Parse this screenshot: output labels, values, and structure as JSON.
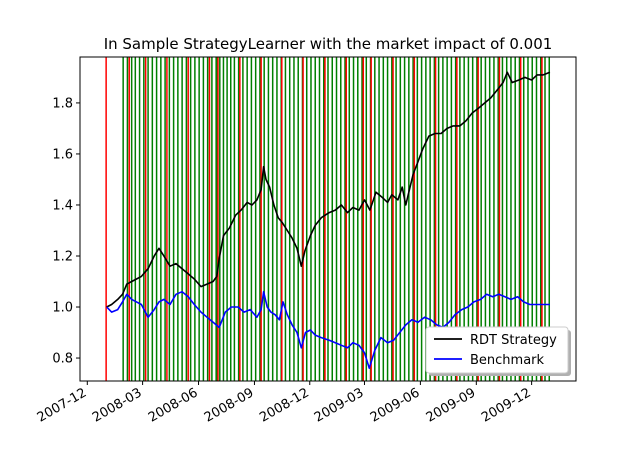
{
  "chart_data": {
    "type": "line",
    "title": "In Sample StrategyLearner with the market impact of 0.001",
    "xlabel": "",
    "ylabel": "",
    "x_ticks": [
      "2007-12",
      "2008-03",
      "2008-06",
      "2008-09",
      "2008-12",
      "2009-03",
      "2009-06",
      "2009-09",
      "2009-12"
    ],
    "y_ticks": [
      "0.8",
      "1.0",
      "1.2",
      "1.4",
      "1.6",
      "1.8"
    ],
    "xlim": [
      "2007-11-19",
      "2010-02-12"
    ],
    "ylim": [
      0.71,
      1.98
    ],
    "grid": false,
    "legend_position": "lower-right",
    "series": [
      {
        "name": "RDT Strategy",
        "color": "#000000",
        "points": [
          [
            "2008-01-02",
            1.0
          ],
          [
            "2008-01-10",
            1.01
          ],
          [
            "2008-01-20",
            1.03
          ],
          [
            "2008-01-28",
            1.05
          ],
          [
            "2008-02-04",
            1.09
          ],
          [
            "2008-02-12",
            1.1
          ],
          [
            "2008-02-20",
            1.11
          ],
          [
            "2008-02-28",
            1.12
          ],
          [
            "2008-03-10",
            1.15
          ],
          [
            "2008-03-20",
            1.2
          ],
          [
            "2008-03-28",
            1.23
          ],
          [
            "2008-04-05",
            1.2
          ],
          [
            "2008-04-15",
            1.16
          ],
          [
            "2008-04-25",
            1.17
          ],
          [
            "2008-05-05",
            1.15
          ],
          [
            "2008-05-15",
            1.13
          ],
          [
            "2008-05-25",
            1.11
          ],
          [
            "2008-06-05",
            1.08
          ],
          [
            "2008-06-15",
            1.09
          ],
          [
            "2008-06-25",
            1.1
          ],
          [
            "2008-07-01",
            1.12
          ],
          [
            "2008-07-05",
            1.19
          ],
          [
            "2008-07-12",
            1.28
          ],
          [
            "2008-07-22",
            1.31
          ],
          [
            "2008-08-01",
            1.36
          ],
          [
            "2008-08-10",
            1.38
          ],
          [
            "2008-08-20",
            1.41
          ],
          [
            "2008-08-28",
            1.4
          ],
          [
            "2008-09-05",
            1.42
          ],
          [
            "2008-09-12",
            1.46
          ],
          [
            "2008-09-16",
            1.55
          ],
          [
            "2008-09-20",
            1.5
          ],
          [
            "2008-09-26",
            1.47
          ],
          [
            "2008-10-03",
            1.4
          ],
          [
            "2008-10-10",
            1.35
          ],
          [
            "2008-10-17",
            1.33
          ],
          [
            "2008-10-25",
            1.3
          ],
          [
            "2008-11-02",
            1.27
          ],
          [
            "2008-11-10",
            1.23
          ],
          [
            "2008-11-17",
            1.16
          ],
          [
            "2008-11-23",
            1.22
          ],
          [
            "2008-12-02",
            1.28
          ],
          [
            "2008-12-10",
            1.32
          ],
          [
            "2008-12-20",
            1.35
          ],
          [
            "2009-01-02",
            1.37
          ],
          [
            "2009-01-12",
            1.38
          ],
          [
            "2009-01-22",
            1.4
          ],
          [
            "2009-02-01",
            1.37
          ],
          [
            "2009-02-10",
            1.39
          ],
          [
            "2009-02-20",
            1.38
          ],
          [
            "2009-03-01",
            1.42
          ],
          [
            "2009-03-10",
            1.38
          ],
          [
            "2009-03-20",
            1.45
          ],
          [
            "2009-03-30",
            1.43
          ],
          [
            "2009-04-08",
            1.41
          ],
          [
            "2009-04-15",
            1.44
          ],
          [
            "2009-04-25",
            1.42
          ],
          [
            "2009-05-02",
            1.47
          ],
          [
            "2009-05-08",
            1.4
          ],
          [
            "2009-05-12",
            1.44
          ],
          [
            "2009-05-20",
            1.52
          ],
          [
            "2009-05-28",
            1.57
          ],
          [
            "2009-06-05",
            1.62
          ],
          [
            "2009-06-15",
            1.67
          ],
          [
            "2009-06-25",
            1.68
          ],
          [
            "2009-07-05",
            1.68
          ],
          [
            "2009-07-15",
            1.7
          ],
          [
            "2009-07-25",
            1.71
          ],
          [
            "2009-08-05",
            1.71
          ],
          [
            "2009-08-15",
            1.73
          ],
          [
            "2009-08-25",
            1.76
          ],
          [
            "2009-09-05",
            1.78
          ],
          [
            "2009-09-15",
            1.8
          ],
          [
            "2009-09-25",
            1.82
          ],
          [
            "2009-10-05",
            1.85
          ],
          [
            "2009-10-15",
            1.88
          ],
          [
            "2009-10-22",
            1.92
          ],
          [
            "2009-10-30",
            1.88
          ],
          [
            "2009-11-10",
            1.89
          ],
          [
            "2009-11-20",
            1.9
          ],
          [
            "2009-12-01",
            1.89
          ],
          [
            "2009-12-10",
            1.91
          ],
          [
            "2009-12-20",
            1.91
          ],
          [
            "2009-12-31",
            1.92
          ]
        ]
      },
      {
        "name": "Benchmark",
        "color": "#0000ff",
        "points": [
          [
            "2008-01-02",
            1.0
          ],
          [
            "2008-01-10",
            0.98
          ],
          [
            "2008-01-20",
            0.99
          ],
          [
            "2008-01-28",
            1.02
          ],
          [
            "2008-02-04",
            1.05
          ],
          [
            "2008-02-12",
            1.03
          ],
          [
            "2008-02-20",
            1.02
          ],
          [
            "2008-02-28",
            1.01
          ],
          [
            "2008-03-10",
            0.96
          ],
          [
            "2008-03-20",
            0.99
          ],
          [
            "2008-03-28",
            1.02
          ],
          [
            "2008-04-05",
            1.03
          ],
          [
            "2008-04-15",
            1.01
          ],
          [
            "2008-04-25",
            1.05
          ],
          [
            "2008-05-05",
            1.06
          ],
          [
            "2008-05-15",
            1.04
          ],
          [
            "2008-05-25",
            1.01
          ],
          [
            "2008-06-05",
            0.98
          ],
          [
            "2008-06-15",
            0.96
          ],
          [
            "2008-06-25",
            0.94
          ],
          [
            "2008-07-05",
            0.92
          ],
          [
            "2008-07-15",
            0.98
          ],
          [
            "2008-07-25",
            1.0
          ],
          [
            "2008-08-05",
            1.0
          ],
          [
            "2008-08-15",
            0.98
          ],
          [
            "2008-08-25",
            0.99
          ],
          [
            "2008-09-05",
            0.96
          ],
          [
            "2008-09-12",
            0.99
          ],
          [
            "2008-09-16",
            1.06
          ],
          [
            "2008-09-22",
            1.0
          ],
          [
            "2008-09-28",
            0.98
          ],
          [
            "2008-10-05",
            0.97
          ],
          [
            "2008-10-12",
            0.95
          ],
          [
            "2008-10-18",
            1.02
          ],
          [
            "2008-10-25",
            0.97
          ],
          [
            "2008-11-02",
            0.93
          ],
          [
            "2008-11-10",
            0.9
          ],
          [
            "2008-11-17",
            0.84
          ],
          [
            "2008-11-24",
            0.9
          ],
          [
            "2008-12-02",
            0.91
          ],
          [
            "2008-12-10",
            0.89
          ],
          [
            "2008-12-20",
            0.88
          ],
          [
            "2009-01-02",
            0.87
          ],
          [
            "2009-01-12",
            0.86
          ],
          [
            "2009-01-22",
            0.85
          ],
          [
            "2009-02-01",
            0.84
          ],
          [
            "2009-02-10",
            0.86
          ],
          [
            "2009-02-20",
            0.85
          ],
          [
            "2009-03-01",
            0.82
          ],
          [
            "2009-03-09",
            0.76
          ],
          [
            "2009-03-18",
            0.83
          ],
          [
            "2009-03-28",
            0.88
          ],
          [
            "2009-04-08",
            0.86
          ],
          [
            "2009-04-18",
            0.87
          ],
          [
            "2009-04-28",
            0.9
          ],
          [
            "2009-05-08",
            0.93
          ],
          [
            "2009-05-18",
            0.95
          ],
          [
            "2009-05-28",
            0.94
          ],
          [
            "2009-06-08",
            0.96
          ],
          [
            "2009-06-18",
            0.95
          ],
          [
            "2009-06-28",
            0.93
          ],
          [
            "2009-07-08",
            0.92
          ],
          [
            "2009-07-18",
            0.94
          ],
          [
            "2009-07-28",
            0.97
          ],
          [
            "2009-08-08",
            0.99
          ],
          [
            "2009-08-18",
            1.0
          ],
          [
            "2009-08-28",
            1.02
          ],
          [
            "2009-09-08",
            1.03
          ],
          [
            "2009-09-18",
            1.05
          ],
          [
            "2009-09-28",
            1.04
          ],
          [
            "2009-10-08",
            1.05
          ],
          [
            "2009-10-18",
            1.04
          ],
          [
            "2009-10-28",
            1.03
          ],
          [
            "2009-11-08",
            1.04
          ],
          [
            "2009-11-18",
            1.02
          ],
          [
            "2009-11-28",
            1.01
          ],
          [
            "2009-12-08",
            1.01
          ],
          [
            "2009-12-18",
            1.01
          ],
          [
            "2009-12-31",
            1.01
          ]
        ]
      }
    ],
    "vertical_lines": {
      "buy_color": "#008000",
      "sell_color": "#ff0000",
      "buy_dates": [
        "2008-01-29",
        "2008-02-05",
        "2008-02-12",
        "2008-02-18",
        "2008-02-25",
        "2008-03-03",
        "2008-03-10",
        "2008-03-17",
        "2008-03-24",
        "2008-03-31",
        "2008-04-07",
        "2008-04-14",
        "2008-04-21",
        "2008-04-28",
        "2008-05-05",
        "2008-05-12",
        "2008-05-19",
        "2008-05-26",
        "2008-06-02",
        "2008-06-09",
        "2008-06-16",
        "2008-06-23",
        "2008-06-30",
        "2008-07-02",
        "2008-07-06",
        "2008-07-12",
        "2008-07-18",
        "2008-07-24",
        "2008-07-30",
        "2008-08-06",
        "2008-08-13",
        "2008-08-20",
        "2008-08-27",
        "2008-09-03",
        "2008-09-10",
        "2008-09-17",
        "2008-09-24",
        "2008-10-01",
        "2008-10-08",
        "2008-10-15",
        "2008-10-22",
        "2008-10-29",
        "2008-11-05",
        "2008-11-12",
        "2008-11-19",
        "2008-11-26",
        "2008-12-03",
        "2008-12-10",
        "2008-12-17",
        "2008-12-24",
        "2008-12-31",
        "2009-01-07",
        "2009-01-14",
        "2009-01-21",
        "2009-01-28",
        "2009-02-04",
        "2009-02-11",
        "2009-02-18",
        "2009-02-25",
        "2009-03-04",
        "2009-03-11",
        "2009-03-18",
        "2009-03-25",
        "2009-04-01",
        "2009-04-08",
        "2009-04-15",
        "2009-04-22",
        "2009-04-29",
        "2009-05-06",
        "2009-05-13",
        "2009-05-20",
        "2009-05-27",
        "2009-06-03",
        "2009-06-10",
        "2009-06-17",
        "2009-06-24",
        "2009-07-01",
        "2009-07-08",
        "2009-07-15",
        "2009-07-22",
        "2009-07-29",
        "2009-08-05",
        "2009-08-12",
        "2009-08-19",
        "2009-08-26",
        "2009-09-02",
        "2009-09-09",
        "2009-09-16",
        "2009-09-23",
        "2009-09-30",
        "2009-10-07",
        "2009-10-14",
        "2009-10-21",
        "2009-10-28",
        "2009-11-04",
        "2009-11-11",
        "2009-11-18",
        "2009-11-25",
        "2009-12-02",
        "2009-12-09",
        "2009-12-16",
        "2009-12-23",
        "2009-12-30"
      ],
      "sell_dates": [
        "2008-01-01",
        "2008-02-08",
        "2008-03-06",
        "2008-04-10",
        "2008-05-15",
        "2008-06-19",
        "2008-07-03",
        "2008-08-08",
        "2008-09-12",
        "2008-10-16",
        "2008-11-20",
        "2008-12-26",
        "2009-01-30",
        "2009-02-27",
        "2009-03-12",
        "2009-04-17",
        "2009-05-22",
        "2009-06-26",
        "2009-07-31",
        "2009-09-04",
        "2009-10-09",
        "2009-11-13",
        "2009-12-18"
      ]
    }
  }
}
